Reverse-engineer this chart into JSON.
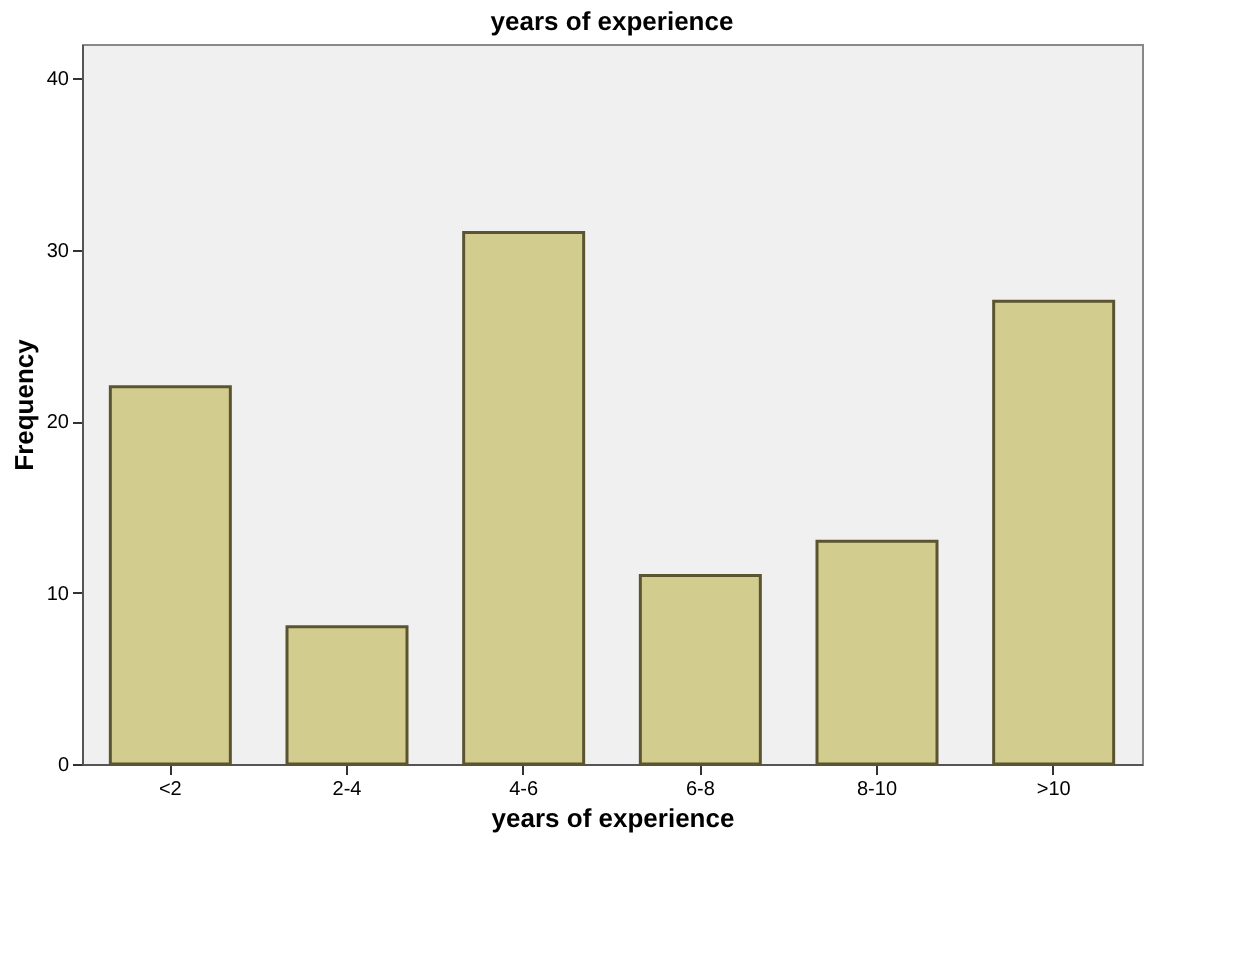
{
  "chart_data": {
    "type": "bar",
    "title": "years of experience",
    "xlabel": "years of experience",
    "ylabel": "Frequency",
    "categories": [
      "<2",
      "2-4",
      "4-6",
      "6-8",
      "8-10",
      ">10"
    ],
    "values": [
      22,
      8,
      31,
      11,
      13,
      27
    ],
    "color": "#d3cc8f",
    "ylim": [
      0,
      42
    ],
    "yticks": [
      0,
      10,
      20,
      30,
      40
    ],
    "grid": false
  }
}
